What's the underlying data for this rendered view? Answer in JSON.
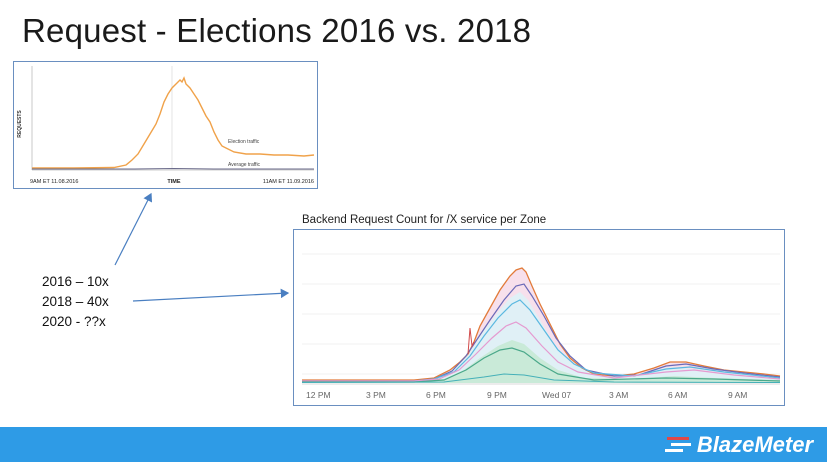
{
  "slide": {
    "title": "Request - Elections 2016 vs. 2018"
  },
  "chart1": {
    "ylabel": "REQUESTS",
    "xlabel": "TIME",
    "x_start_label": "9AM ET 11.08.2016",
    "x_end_label": "11AM ET 11.09.2016",
    "series_election_label": "Election traffic",
    "series_average_label": "Average traffic",
    "election_color": "#f0a24a",
    "average_color": "#6a6a8a"
  },
  "chart2": {
    "title": "Backend Request Count for /X service per Zone",
    "tick_labels": [
      "12 PM",
      "3 PM",
      "6 PM",
      "9 PM",
      "Wed 07",
      "3 AM",
      "6 AM",
      "9 AM"
    ]
  },
  "stats": {
    "line1": "2016 – 10x",
    "line2": "2018 – 40x",
    "line3": "2020 - ??x"
  },
  "footer": {
    "brand": "BlazeMeter",
    "color": "#2e9be6"
  }
}
